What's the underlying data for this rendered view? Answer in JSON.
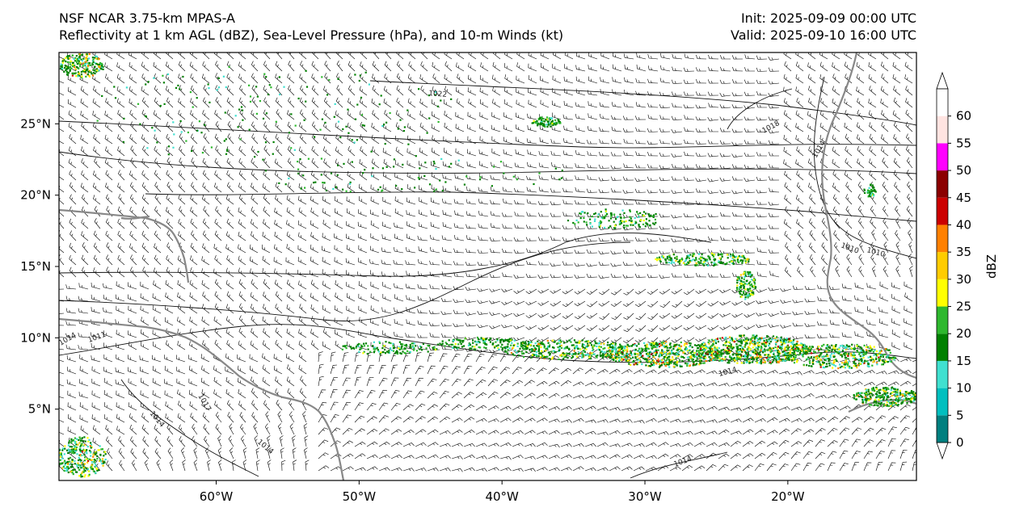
{
  "header": {
    "model_title": "NSF NCAR 3.75-km MPAS-A",
    "fields_title": "Reflectivity at 1 km AGL (dBZ), Sea-Level Pressure (hPa), and 10-m Winds (kt)",
    "init_label": "Init: 2025-09-09 00:00 UTC",
    "valid_label": "Valid: 2025-09-10 16:00 UTC"
  },
  "map": {
    "extent": {
      "lon_min": -71,
      "lon_max": -11,
      "lat_min": 0,
      "lat_max": 30
    },
    "lat_ticks": [
      {
        "value": 25,
        "label": "25°N"
      },
      {
        "value": 20,
        "label": "20°N"
      },
      {
        "value": 15,
        "label": "15°N"
      },
      {
        "value": 10,
        "label": "10°N"
      },
      {
        "value": 5,
        "label": "5°N"
      }
    ],
    "lon_ticks": [
      {
        "value": -60,
        "label": "60°W"
      },
      {
        "value": -50,
        "label": "50°W"
      },
      {
        "value": -40,
        "label": "40°W"
      },
      {
        "value": -30,
        "label": "30°W"
      },
      {
        "value": -20,
        "label": "20°W"
      }
    ],
    "isobar_labels": [
      "1022",
      "1018",
      "1014",
      "1010",
      "1014",
      "1011",
      "1017",
      "1014",
      "1014",
      "1014",
      "1010",
      "1014"
    ]
  },
  "colorbar": {
    "label": "dBZ",
    "levels": [
      {
        "value": 0,
        "label": "0",
        "color": "#007f7f"
      },
      {
        "value": 5,
        "label": "5",
        "color": "#00bfbf"
      },
      {
        "value": 10,
        "label": "10",
        "color": "#40e0d0"
      },
      {
        "value": 15,
        "label": "15",
        "color": "#008000"
      },
      {
        "value": 20,
        "label": "20",
        "color": "#2eb82e"
      },
      {
        "value": 25,
        "label": "25",
        "color": "#ffff00"
      },
      {
        "value": 30,
        "label": "30",
        "color": "#ffcc00"
      },
      {
        "value": 35,
        "label": "35",
        "color": "#ff8000"
      },
      {
        "value": 40,
        "label": "40",
        "color": "#cc0000"
      },
      {
        "value": 45,
        "label": "45",
        "color": "#8b0000"
      },
      {
        "value": 50,
        "label": "50",
        "color": "#ff00ff"
      },
      {
        "value": 55,
        "label": "55",
        "color": "#ffe4e1"
      },
      {
        "value": 60,
        "label": "60",
        "color": "#ffffff"
      }
    ]
  },
  "colors": {
    "coastline": "#888888",
    "isobar": "#111111",
    "barb": "#000000"
  }
}
